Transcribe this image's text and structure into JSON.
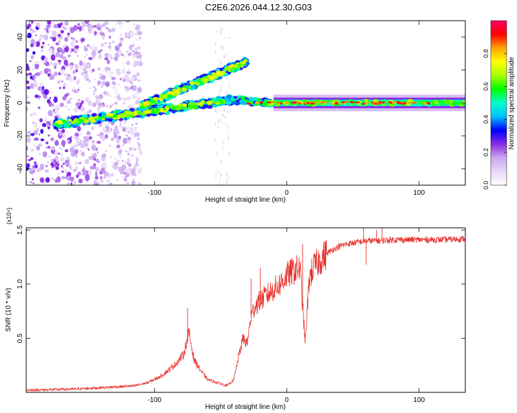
{
  "title": "C2E6.2026.044.12.30.G03",
  "colors": {
    "line": "#e8302a",
    "axis": "#000000",
    "background": "#ffffff"
  },
  "chart_data": [
    {
      "type": "heatmap",
      "xlabel": "Height of straight line (km)",
      "ylabel": "Frequency (Hz)",
      "xlim": [
        -197,
        135
      ],
      "ylim": [
        -50,
        50
      ],
      "x_ticks": [
        -100,
        0,
        100
      ],
      "y_ticks": [
        -40,
        -20,
        0,
        20,
        40
      ],
      "colorbar": {
        "label": "Normalized spectral amplitude",
        "range": [
          0,
          1
        ],
        "ticks": [
          0.0,
          0.2,
          0.4,
          0.6,
          0.8
        ],
        "tick_labels": [
          "0.0",
          "0.2",
          "0.4",
          "0.6",
          "0.8"
        ],
        "colormap": [
          "#ffffff",
          "#e8d8f8",
          "#c9a6f0",
          "#8a2be2",
          "#0000ff",
          "#00bfff",
          "#00ffcc",
          "#00ff00",
          "#aaff00",
          "#ffff00",
          "#ffa500",
          "#ff0000",
          "#ff0066"
        ]
      },
      "features": {
        "carrier": {
          "x_range": [
            -40,
            135
          ],
          "frequency": 0,
          "peak_amplitude": 0.95
        },
        "lower_branch": {
          "x_start": -175,
          "f_start": -13,
          "x_end": -40,
          "f_end": 2
        },
        "upper_branch": {
          "x_start": -110,
          "f_start": -2,
          "x_end": -30,
          "f_end": 25
        },
        "noise_region": {
          "x_range": [
            -197,
            -110
          ],
          "f_range": [
            -50,
            50
          ]
        }
      }
    },
    {
      "type": "line",
      "xlabel": "Height of straight line (km)",
      "ylabel": "SNR (10 * v/v)",
      "y_multiplier_label": "(x10⁴)",
      "xlim": [
        -197,
        135
      ],
      "ylim": [
        0,
        1.52
      ],
      "x_ticks": [
        -100,
        0,
        100
      ],
      "y_ticks": [
        0.5,
        1.0,
        1.5
      ],
      "y_tick_labels": [
        "0.5",
        "1.0",
        "1.5"
      ],
      "x_tick_labels": [
        "-100",
        "0",
        "100"
      ],
      "series": [
        {
          "name": "SNR",
          "x": [
            -197,
            -160,
            -130,
            -115,
            -105,
            -95,
            -85,
            -78,
            -74,
            -70,
            -65,
            -60,
            -55,
            -50,
            -45,
            -40,
            -36,
            -33,
            -30,
            -27,
            -24,
            -20,
            -15,
            -10,
            -5,
            0,
            5,
            10,
            14,
            17,
            20,
            25,
            30,
            35,
            40,
            45,
            50,
            55,
            60,
            70,
            80,
            90,
            100,
            110,
            120,
            135
          ],
          "values": [
            0.02,
            0.03,
            0.05,
            0.06,
            0.09,
            0.15,
            0.25,
            0.35,
            0.55,
            0.3,
            0.2,
            0.12,
            0.1,
            0.08,
            0.06,
            0.12,
            0.35,
            0.5,
            0.45,
            0.7,
            0.8,
            0.85,
            0.9,
            0.95,
            1.0,
            1.08,
            1.12,
            1.15,
            0.45,
            1.05,
            1.15,
            1.22,
            1.28,
            1.32,
            1.35,
            1.37,
            1.38,
            1.39,
            1.4,
            1.4,
            1.41,
            1.41,
            1.41,
            1.41,
            1.41,
            1.42
          ]
        }
      ],
      "spikes": [
        {
          "x": -75,
          "value": 0.78
        },
        {
          "x": -27,
          "value": 1.05
        },
        {
          "x": -20,
          "value": 1.15
        },
        {
          "x": 12,
          "value": 1.37
        },
        {
          "x": 58,
          "value": 1.52
        },
        {
          "x": 60,
          "value": 1.18
        },
        {
          "x": 68,
          "value": 1.5
        },
        {
          "x": 72,
          "value": 1.52
        }
      ]
    }
  ]
}
